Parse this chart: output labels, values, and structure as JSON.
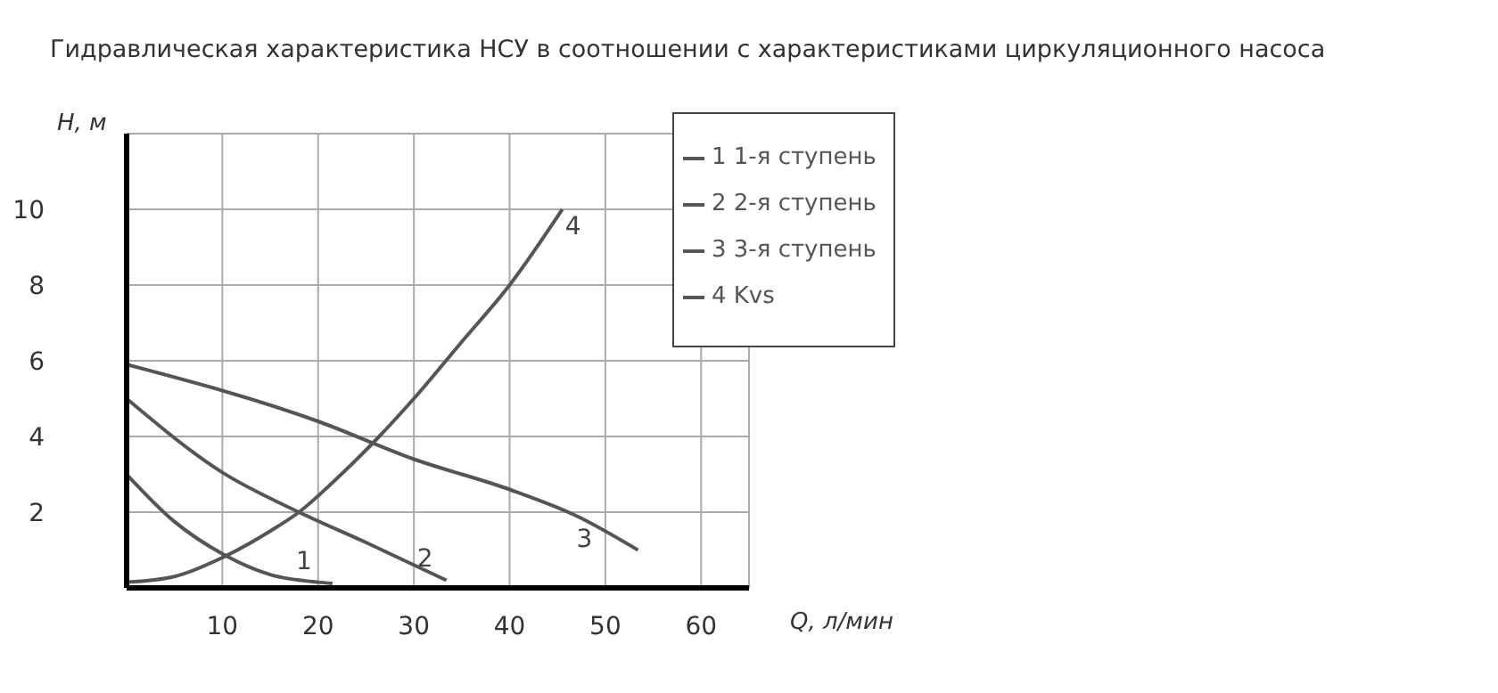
{
  "chart_data": {
    "type": "line",
    "title": "Гидравлическая характеристика НСУ в соотношении с характеристиками циркуляционного насоса",
    "xlabel": "Q, л/мин",
    "ylabel": "H, м",
    "xlim": [
      0,
      65
    ],
    "xticks": [
      10,
      20,
      30,
      40,
      50,
      60
    ],
    "ylim": [
      0,
      12
    ],
    "yticks": [
      2,
      4,
      6,
      8,
      10
    ],
    "grid": true,
    "legend": "top right",
    "marker": "none",
    "line_style": "solid",
    "series": [
      {
        "name": "1 1-я ступень",
        "color": "#555555",
        "x": [
          0,
          5,
          10,
          15,
          20,
          21.5
        ],
        "values": [
          3,
          1.75,
          0.9,
          0.35,
          0.15,
          0.12
        ]
      },
      {
        "name": "2 2-я ступень",
        "color": "#555555",
        "x": [
          0,
          10,
          18,
          25,
          33.4
        ],
        "values": [
          5,
          3.05,
          2,
          1.2,
          0.2
        ]
      },
      {
        "name": "3 3-я ступень",
        "color": "#555555",
        "x": [
          0,
          20,
          30,
          40,
          47,
          53.4
        ],
        "values": [
          5.9,
          4.4,
          3.4,
          2.6,
          1.9,
          1
        ]
      },
      {
        "name": "4 Kvs",
        "color": "#555555",
        "x": [
          0,
          5,
          10,
          15,
          18,
          22,
          26,
          30,
          35,
          40,
          45.5
        ],
        "values": [
          0.15,
          0.3,
          0.8,
          1.5,
          2,
          2.9,
          3.9,
          5,
          6.5,
          8,
          10
        ]
      }
    ],
    "annotations": [
      "1",
      "2",
      "3",
      "4"
    ]
  }
}
